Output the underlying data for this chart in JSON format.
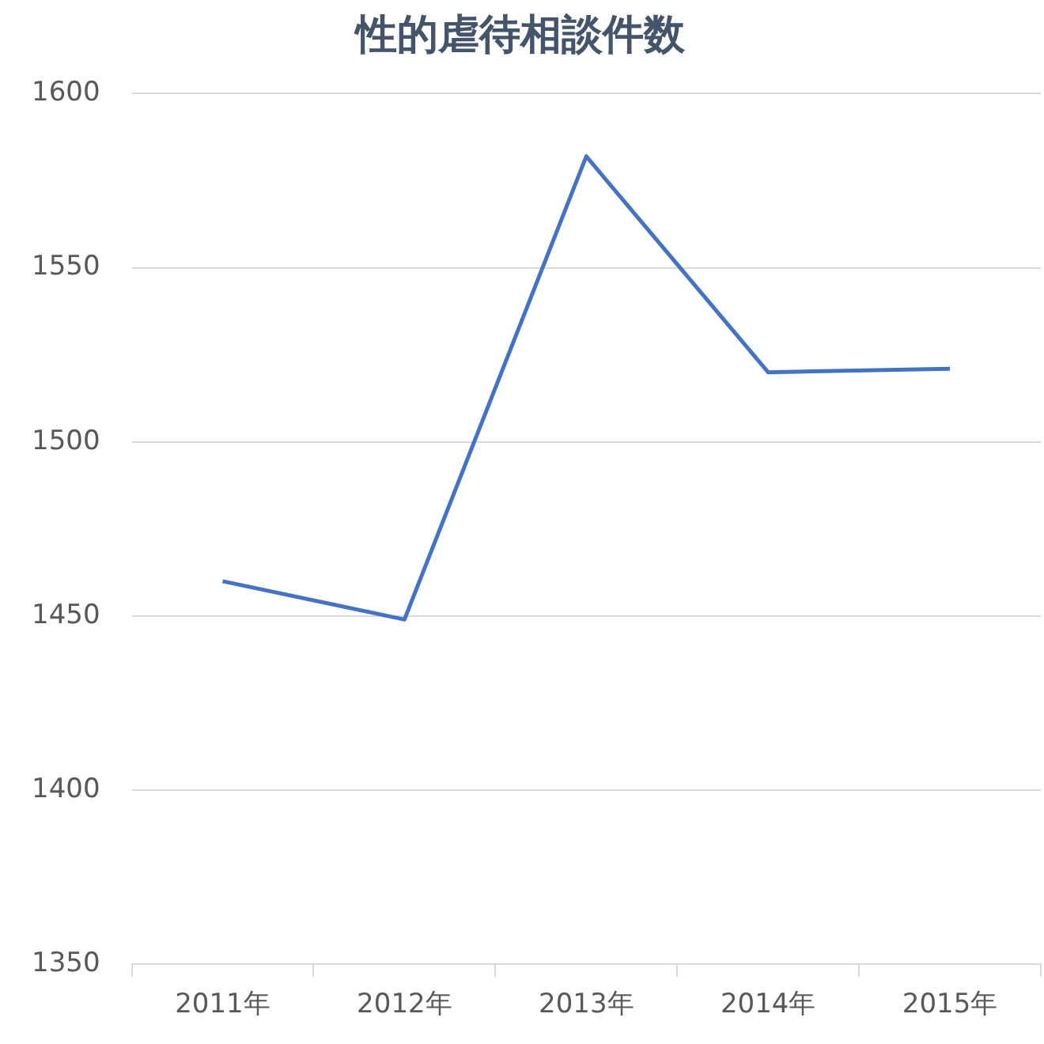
{
  "chart_data": {
    "type": "line",
    "title": "性的虐待相談件数",
    "categories": [
      "2011年",
      "2012年",
      "2013年",
      "2014年",
      "2015年"
    ],
    "series": [
      {
        "color": "#4472c4",
        "values": [
          1460,
          1449,
          1582,
          1520,
          1521
        ]
      }
    ],
    "ylim": [
      1350,
      1600
    ],
    "yticks": [
      1350,
      1400,
      1450,
      1500,
      1550,
      1600
    ],
    "grid": "y",
    "legend": false,
    "marker": "none",
    "line_style": "solid"
  }
}
